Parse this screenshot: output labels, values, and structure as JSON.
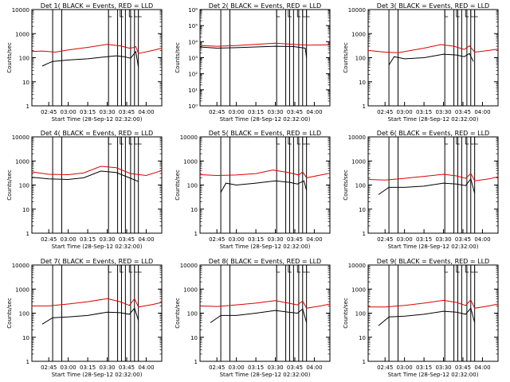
{
  "chart_data": {
    "type": "line",
    "ylabel": "Counts/sec",
    "xlabel": "Start Time (28-Sep-12 02:32:00)",
    "x_ticks": [
      "02:45",
      "03:00",
      "03:15",
      "03:30",
      "03:45",
      "04:00"
    ],
    "x_tick_minutes": [
      45,
      60,
      75,
      90,
      105,
      120
    ],
    "xlim_minutes": [
      32,
      132
    ],
    "yscale": "log",
    "ylim": [
      1,
      10000
    ],
    "y_ticks": [
      "1",
      "10",
      "100",
      "1000",
      "10000"
    ],
    "y_ticks_exp": [
      "10⁰",
      "10¹",
      "10²",
      "10³",
      "10⁴",
      "10⁵",
      "10⁶"
    ],
    "colors": {
      "events": "#000000",
      "lld": "#dd0000"
    },
    "vertical_markers_minutes": [
      48,
      55,
      91,
      98,
      101,
      104,
      108,
      111,
      114
    ],
    "gap_markers_minutes": [
      91,
      100,
      107,
      111,
      114
    ],
    "panels": [
      {
        "title": "Det 1(   BLACK = Events, RED = LLD",
        "events": [
          [
            40,
            45
          ],
          [
            45,
            60
          ],
          [
            48,
            70
          ],
          [
            60,
            80
          ],
          [
            75,
            90
          ],
          [
            90,
            110
          ],
          [
            97,
            120
          ],
          [
            103,
            110
          ],
          [
            108,
            95
          ],
          [
            112,
            180
          ],
          [
            114,
            40
          ]
        ],
        "lld": [
          [
            32,
            180
          ],
          [
            40,
            190
          ],
          [
            50,
            170
          ],
          [
            60,
            210
          ],
          [
            75,
            270
          ],
          [
            90,
            360
          ],
          [
            100,
            310
          ],
          [
            107,
            250
          ],
          [
            110,
            260
          ],
          [
            112,
            290
          ],
          [
            114,
            150
          ],
          [
            125,
            200
          ],
          [
            132,
            250
          ]
        ]
      },
      {
        "title": "Det 2(   BLACK = Events, RED = LLD",
        "yscale_labels": "exp",
        "events": [
          [
            32,
            280
          ],
          [
            45,
            250
          ],
          [
            60,
            260
          ],
          [
            75,
            280
          ],
          [
            90,
            300
          ],
          [
            104,
            290
          ],
          [
            113,
            250
          ],
          [
            114,
            100
          ]
        ],
        "lld": [
          [
            32,
            320
          ],
          [
            45,
            300
          ],
          [
            60,
            320
          ],
          [
            75,
            360
          ],
          [
            90,
            400
          ],
          [
            104,
            360
          ],
          [
            115,
            330
          ],
          [
            132,
            340
          ]
        ]
      },
      {
        "title": "Det 3(   BLACK = Events, RED = LLD",
        "events": [
          [
            48,
            50
          ],
          [
            52,
            110
          ],
          [
            60,
            90
          ],
          [
            75,
            100
          ],
          [
            90,
            140
          ],
          [
            100,
            130
          ],
          [
            106,
            110
          ],
          [
            110,
            150
          ],
          [
            113,
            70
          ]
        ],
        "lld": [
          [
            32,
            200
          ],
          [
            45,
            170
          ],
          [
            55,
            160
          ],
          [
            65,
            200
          ],
          [
            75,
            250
          ],
          [
            88,
            350
          ],
          [
            98,
            300
          ],
          [
            106,
            220
          ],
          [
            110,
            310
          ],
          [
            114,
            170
          ],
          [
            125,
            200
          ],
          [
            132,
            230
          ]
        ]
      },
      {
        "title": "Det 4(   BLACK = Events, RED = LLD",
        "events": [
          [
            32,
            210
          ],
          [
            45,
            180
          ],
          [
            60,
            170
          ],
          [
            72,
            200
          ],
          [
            85,
            380
          ],
          [
            97,
            330
          ],
          [
            107,
            200
          ],
          [
            114,
            140
          ]
        ],
        "lld": [
          [
            32,
            350
          ],
          [
            45,
            280
          ],
          [
            60,
            270
          ],
          [
            72,
            320
          ],
          [
            85,
            600
          ],
          [
            97,
            520
          ],
          [
            108,
            300
          ],
          [
            120,
            250
          ],
          [
            132,
            400
          ]
        ]
      },
      {
        "title": "Det 5(   BLACK = Events, RED = LLD",
        "events": [
          [
            48,
            50
          ],
          [
            52,
            120
          ],
          [
            60,
            100
          ],
          [
            75,
            120
          ],
          [
            90,
            150
          ],
          [
            101,
            130
          ],
          [
            107,
            110
          ],
          [
            112,
            150
          ],
          [
            114,
            60
          ]
        ],
        "lld": [
          [
            32,
            270
          ],
          [
            45,
            250
          ],
          [
            60,
            260
          ],
          [
            75,
            300
          ],
          [
            88,
            420
          ],
          [
            100,
            330
          ],
          [
            108,
            260
          ],
          [
            111,
            350
          ],
          [
            114,
            200
          ],
          [
            125,
            260
          ],
          [
            132,
            310
          ]
        ]
      },
      {
        "title": "Det 6(   BLACK = Events, RED = LLD",
        "events": [
          [
            40,
            40
          ],
          [
            48,
            80
          ],
          [
            60,
            80
          ],
          [
            75,
            90
          ],
          [
            90,
            120
          ],
          [
            100,
            110
          ],
          [
            107,
            95
          ],
          [
            111,
            180
          ],
          [
            114,
            45
          ]
        ],
        "lld": [
          [
            32,
            170
          ],
          [
            45,
            160
          ],
          [
            60,
            190
          ],
          [
            75,
            230
          ],
          [
            90,
            280
          ],
          [
            100,
            240
          ],
          [
            107,
            190
          ],
          [
            111,
            300
          ],
          [
            114,
            150
          ],
          [
            125,
            180
          ],
          [
            132,
            220
          ]
        ]
      },
      {
        "title": "Det 7(   BLACK = Events, RED = LLD",
        "events": [
          [
            40,
            35
          ],
          [
            48,
            65
          ],
          [
            60,
            70
          ],
          [
            75,
            80
          ],
          [
            90,
            110
          ],
          [
            100,
            105
          ],
          [
            107,
            90
          ],
          [
            111,
            160
          ],
          [
            114,
            50
          ]
        ],
        "lld": [
          [
            32,
            200
          ],
          [
            45,
            200
          ],
          [
            60,
            240
          ],
          [
            75,
            300
          ],
          [
            90,
            400
          ],
          [
            100,
            300
          ],
          [
            107,
            210
          ],
          [
            111,
            400
          ],
          [
            114,
            180
          ],
          [
            125,
            230
          ],
          [
            132,
            280
          ]
        ]
      },
      {
        "title": "Det 8(   BLACK = Events, RED = LLD",
        "events": [
          [
            40,
            40
          ],
          [
            48,
            80
          ],
          [
            60,
            80
          ],
          [
            75,
            100
          ],
          [
            90,
            130
          ],
          [
            100,
            110
          ],
          [
            107,
            100
          ],
          [
            111,
            150
          ],
          [
            114,
            40
          ]
        ],
        "lld": [
          [
            32,
            200
          ],
          [
            45,
            190
          ],
          [
            60,
            220
          ],
          [
            75,
            260
          ],
          [
            90,
            330
          ],
          [
            100,
            260
          ],
          [
            107,
            220
          ],
          [
            111,
            320
          ],
          [
            114,
            160
          ],
          [
            125,
            200
          ],
          [
            132,
            240
          ]
        ]
      },
      {
        "title": "Det 9(   BLACK = Events, RED = LLD",
        "events": [
          [
            40,
            30
          ],
          [
            48,
            70
          ],
          [
            60,
            75
          ],
          [
            75,
            90
          ],
          [
            90,
            120
          ],
          [
            100,
            110
          ],
          [
            107,
            90
          ],
          [
            111,
            160
          ],
          [
            114,
            40
          ]
        ],
        "lld": [
          [
            32,
            180
          ],
          [
            45,
            180
          ],
          [
            60,
            210
          ],
          [
            75,
            260
          ],
          [
            90,
            340
          ],
          [
            100,
            280
          ],
          [
            107,
            210
          ],
          [
            111,
            350
          ],
          [
            114,
            160
          ],
          [
            125,
            200
          ],
          [
            132,
            240
          ]
        ]
      }
    ]
  }
}
